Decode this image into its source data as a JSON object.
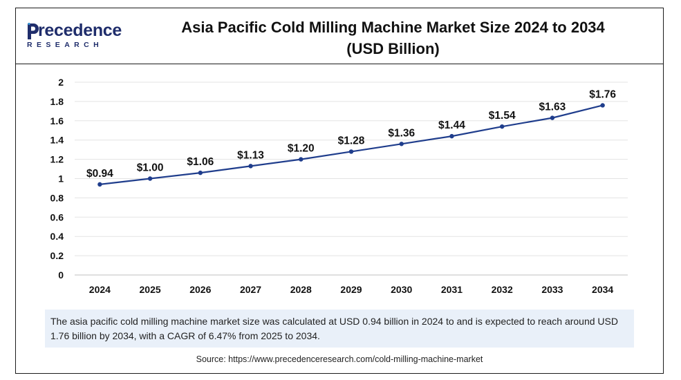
{
  "header": {
    "logo_main": "recedence",
    "logo_letter": "P",
    "logo_sub": "RESEARCH",
    "title_line1": "Asia Pacific Cold Milling Machine Market Size 2024 to 2034",
    "title_line2": "(USD Billion)"
  },
  "colors": {
    "line": "#1f3d8c",
    "brand": "#1f2d6b",
    "note_bg": "#e9f0f9"
  },
  "chart_data": {
    "type": "line",
    "categories": [
      "2024",
      "2025",
      "2026",
      "2027",
      "2028",
      "2029",
      "2030",
      "2031",
      "2032",
      "2033",
      "2034"
    ],
    "values": [
      0.94,
      1.0,
      1.06,
      1.13,
      1.2,
      1.28,
      1.36,
      1.44,
      1.54,
      1.63,
      1.76
    ],
    "data_labels": [
      "$0.94",
      "$1.00",
      "$1.06",
      "$1.13",
      "$1.20",
      "$1.28",
      "$1.36",
      "$1.44",
      "$1.54",
      "$1.63",
      "$1.76"
    ],
    "yticks": [
      "0",
      "0.2",
      "0.4",
      "0.6",
      "0.8",
      "1",
      "1.2",
      "1.4",
      "1.6",
      "1.8",
      "2"
    ],
    "ylim": [
      0,
      2
    ],
    "grid": true,
    "legend": "none"
  },
  "note": "The asia pacific cold milling machine market size was calculated at USD 0.94 billion in 2024 to and is expected to reach around USD 1.76 billion by 2034, with a CAGR of 6.47% from 2025 to 2034.",
  "source": "Source: https://www.precedenceresearch.com/cold-milling-machine-market"
}
